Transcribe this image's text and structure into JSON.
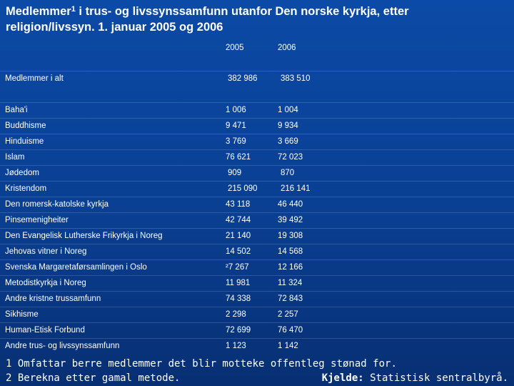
{
  "title": {
    "line1_pre": "Medlemmer",
    "line1_sup": "1",
    "line1_post": " i trus- og livssynssamfunn utanfor Den norske kyrkja, etter",
    "line2": "religion/livssyn. 1. januar 2005 og 2006"
  },
  "columns": [
    "2005",
    "2006"
  ],
  "rows": [
    {
      "label": "Medlemmer i alt",
      "v2005": "382 986",
      "v2006": "383 510"
    },
    {
      "label": "Baha'i",
      "v2005": "1 006",
      "v2006": "1 004"
    },
    {
      "label": "Buddhisme",
      "v2005": "9 471",
      "v2006": "9 934"
    },
    {
      "label": "Hinduisme",
      "v2005": "3 769",
      "v2006": "3 669"
    },
    {
      "label": "Islam",
      "v2005": "76 621",
      "v2006": "72 023"
    },
    {
      "label": "Jødedom",
      "v2005": "909",
      "v2006": "870"
    },
    {
      "label": "Kristendom",
      "v2005": "215 090",
      "v2006": "216 141"
    },
    {
      "label": "Den romersk-katolske kyrkja",
      "v2005": "43 118",
      "v2006": "46 440"
    },
    {
      "label": "Pinsemenigheiter",
      "v2005": "42 744",
      "v2006": "39 492"
    },
    {
      "label": "Den Evangelisk Lutherske Frikyrkja i Noreg",
      "v2005": "21 140",
      "v2006": "19 308"
    },
    {
      "label": "Jehovas vitner i Noreg",
      "v2005": "14 502",
      "v2006": "14 568"
    },
    {
      "label": "Svenska Margaretaførsamlingen i Oslo",
      "v2005": "²7 267",
      "v2006": "12 166"
    },
    {
      "label": "Metodistkyrkja i Noreg",
      "v2005": "11 981",
      "v2006": "11 324"
    },
    {
      "label": "Andre kristne trussamfunn",
      "v2005": "74 338",
      "v2006": "72 843"
    },
    {
      "label": "Sikhisme",
      "v2005": "2 298",
      "v2006": "2 257"
    },
    {
      "label": "Human-Etisk Forbund",
      "v2005": "72 699",
      "v2006": "76 470"
    },
    {
      "label": "Andre trus- og livssynssamfunn",
      "v2005": "1 123",
      "v2006": "1 142"
    }
  ],
  "footnotes": [
    "1 Omfattar berre medlemmer det blir motteke offentleg stønad for.",
    "2 Berekna etter gamal metode."
  ],
  "source": {
    "label": "Kjelde:",
    "text": " Statistisk sentralbyrå."
  }
}
